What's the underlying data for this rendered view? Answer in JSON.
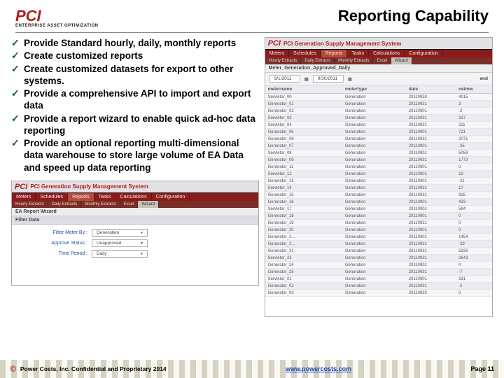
{
  "header": {
    "logo_main": "PCI",
    "logo_sub": "ENTERPRISE ASSET OPTIMIZATION",
    "title": "Reporting Capability"
  },
  "bullets": [
    "Provide Standard hourly, daily, monthly reports",
    "Create customized reports",
    "Create customized datasets for export to other systems.",
    "Provide a comprehensive API to import and export data",
    "Provide a report wizard to enable quick ad-hoc data reporting",
    "Provide an optional reporting multi-dimensional data warehouse to store large volume of EA Data and speed up data reporting"
  ],
  "app": {
    "logo": "PCI",
    "title": "PCI Generation Supply Management System",
    "nav": [
      "Meters",
      "Schedules",
      "Reports",
      "Tasks",
      "Calculations",
      "Configuration"
    ],
    "nav_active_index": 2,
    "subnav": [
      "Hourly Extracts",
      "Daily Extracts",
      "Monthly Extracts",
      "Excel",
      "Wizard"
    ],
    "subnav_active_index": 4,
    "wizard_title": "EA Report Wizard",
    "filter_section": "Filter Data",
    "form": {
      "filter_label": "Filter Meter By :",
      "filter_value": "Generation",
      "approve_label": "Approve Status :",
      "approve_value": "Unapproved",
      "period_label": "Time Period :",
      "period_value": "Daily"
    },
    "grid_title": "Meter_Generation_Approved_Daily",
    "range_from": "9/1/2011",
    "range_to": "9/30/2011",
    "range_label_end": "end",
    "columns": [
      "metername",
      "metertype",
      "date",
      "netmw"
    ],
    "rows": [
      [
        "Servletor_00",
        "Generation",
        "20110930",
        "4015"
      ],
      [
        "Generator_01",
        "Generation",
        "20110931",
        "3"
      ],
      [
        "Generator_02",
        "Generation",
        "20110901",
        "-2"
      ],
      [
        "Servletor_03",
        "Generation",
        "20110931",
        "337"
      ],
      [
        "Servletor_04",
        "Generation",
        "20110931",
        "311"
      ],
      [
        "Generator_05",
        "Generation",
        "20110901",
        "721"
      ],
      [
        "Generator_06",
        "Generation",
        "20110931",
        "2071"
      ],
      [
        "Generator_07",
        "Generation",
        "20110901",
        "-35"
      ],
      [
        "Servletor_08",
        "Generation",
        "20110901",
        "5059"
      ],
      [
        "Generator_09",
        "Generation",
        "20110931",
        "1773"
      ],
      [
        "Generator_11",
        "Generation",
        "20110901",
        "0"
      ],
      [
        "Servletor_12",
        "Generation",
        "20110901",
        "19"
      ],
      [
        "Generator_13",
        "Generation",
        "20110901",
        "-21"
      ],
      [
        "Servletor_14",
        "Generation",
        "20110931",
        "17"
      ],
      [
        "Generator_15",
        "Generation",
        "20110931",
        "915"
      ],
      [
        "Generator_16",
        "Generation",
        "20110901",
        "433"
      ],
      [
        "Servletor_17",
        "Generation",
        "20110901",
        "594"
      ],
      [
        "Generator_18",
        "Generation",
        "20110901",
        "0"
      ],
      [
        "Generator_19",
        "Generation",
        "20110931",
        "0"
      ],
      [
        "Generator_20",
        "Generation",
        "20110901",
        "0"
      ],
      [
        "Generator_2…",
        "Generation",
        "20110901",
        "1454"
      ],
      [
        "Generator_2…",
        "Generation",
        "20110931",
        "-29"
      ],
      [
        "Generator_21",
        "Generation",
        "20110931",
        "5333"
      ],
      [
        "Servletor_23",
        "Generation",
        "20110931",
        "2643"
      ],
      [
        "Generator_24",
        "Generation",
        "20110901",
        "0"
      ],
      [
        "Generator_25",
        "Generation",
        "20110931",
        "-7"
      ],
      [
        "Servletor_01",
        "Generation",
        "20110901",
        "331"
      ],
      [
        "Generator_02",
        "Generation",
        "20110931",
        "-2"
      ],
      [
        "Generator_03",
        "Generation",
        "20110932",
        "0"
      ]
    ]
  },
  "footer": {
    "copyright_symbol": "©",
    "copyright": "Power Costs, Inc.   Confidential and Proprietary 2014",
    "link": "www.powercosts.com",
    "page": "Page 11"
  }
}
